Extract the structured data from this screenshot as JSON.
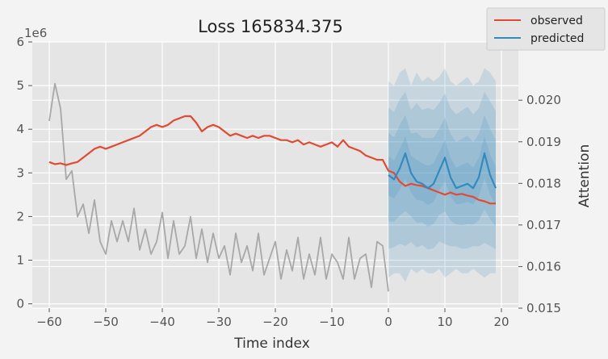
{
  "chart_data": {
    "type": "line",
    "title": "Loss 165834.375",
    "xlabel": "Time index",
    "ylabel_left": "",
    "ylabel_right": "Attention",
    "left_axis_offset_label": "1e6",
    "xlim": [
      -63,
      23
    ],
    "ylim_left": [
      -0.1,
      6.0
    ],
    "ylim_right": [
      0.015,
      0.0214
    ],
    "x_ticks": [
      -60,
      -50,
      -40,
      -30,
      -20,
      -10,
      0,
      10,
      20
    ],
    "y_ticks_left": [
      0,
      1,
      2,
      3,
      4,
      5,
      6
    ],
    "y_ticks_right": [
      0.015,
      0.016,
      0.017,
      0.018,
      0.019,
      0.02
    ],
    "y_tick_labels_right": [
      "0.015",
      "0.016",
      "0.017",
      "0.018",
      "0.019",
      "0.020"
    ],
    "grid": true,
    "legend_position": "top-right",
    "colors": {
      "observed": "#e24a33",
      "predicted": "#348abd",
      "attention": "#a8a8a8",
      "band": "#348abd"
    },
    "series": [
      {
        "name": "observed",
        "axis": "left",
        "x": [
          -60,
          -59,
          -58,
          -57,
          -56,
          -55,
          -54,
          -53,
          -52,
          -51,
          -50,
          -49,
          -48,
          -47,
          -46,
          -45,
          -44,
          -43,
          -42,
          -41,
          -40,
          -39,
          -38,
          -37,
          -36,
          -35,
          -34,
          -33,
          -32,
          -31,
          -30,
          -29,
          -28,
          -27,
          -26,
          -25,
          -24,
          -23,
          -22,
          -21,
          -20,
          -19,
          -18,
          -17,
          -16,
          -15,
          -14,
          -13,
          -12,
          -11,
          -10,
          -9,
          -8,
          -7,
          -6,
          -5,
          -4,
          -3,
          -2,
          -1,
          0,
          1,
          2,
          3,
          4,
          5,
          6,
          7,
          8,
          9,
          10,
          11,
          12,
          13,
          14,
          15,
          16,
          17,
          18,
          19
        ],
        "y": [
          3.25,
          3.2,
          3.22,
          3.18,
          3.22,
          3.25,
          3.35,
          3.45,
          3.55,
          3.6,
          3.55,
          3.6,
          3.65,
          3.7,
          3.75,
          3.8,
          3.85,
          3.95,
          4.05,
          4.1,
          4.05,
          4.1,
          4.2,
          4.25,
          4.3,
          4.3,
          4.15,
          3.95,
          4.05,
          4.1,
          4.05,
          3.95,
          3.85,
          3.9,
          3.85,
          3.8,
          3.85,
          3.8,
          3.85,
          3.85,
          3.8,
          3.75,
          3.75,
          3.7,
          3.75,
          3.65,
          3.7,
          3.65,
          3.6,
          3.65,
          3.7,
          3.6,
          3.75,
          3.6,
          3.55,
          3.5,
          3.4,
          3.35,
          3.3,
          3.3,
          3.05,
          3.0,
          2.8,
          2.7,
          2.75,
          2.72,
          2.7,
          2.65,
          2.6,
          2.55,
          2.5,
          2.55,
          2.5,
          2.52,
          2.48,
          2.45,
          2.38,
          2.35,
          2.3,
          2.3
        ]
      },
      {
        "name": "predicted",
        "axis": "left",
        "x": [
          0,
          1,
          2,
          3,
          4,
          5,
          6,
          7,
          8,
          9,
          10,
          11,
          12,
          13,
          14,
          15,
          16,
          17,
          18,
          19
        ],
        "y": [
          2.95,
          2.85,
          3.1,
          3.45,
          3.0,
          2.8,
          2.75,
          2.65,
          2.75,
          3.05,
          3.35,
          2.9,
          2.65,
          2.7,
          2.75,
          2.65,
          2.9,
          3.45,
          2.95,
          2.65
        ],
        "lower": [
          0.6,
          0.7,
          0.7,
          0.5,
          0.8,
          0.7,
          0.8,
          0.7,
          0.7,
          0.8,
          0.6,
          0.7,
          0.8,
          0.7,
          0.7,
          0.8,
          0.7,
          0.6,
          0.7,
          0.7
        ],
        "upper": [
          5.1,
          5.0,
          5.3,
          5.4,
          5.0,
          5.3,
          5.1,
          5.2,
          5.1,
          5.2,
          5.4,
          5.1,
          5.0,
          5.1,
          5.2,
          5.0,
          5.1,
          5.4,
          5.3,
          5.1
        ]
      },
      {
        "name": "attention",
        "axis": "right",
        "x": [
          -60,
          -59,
          -58,
          -57,
          -56,
          -55,
          -54,
          -53,
          -52,
          -51,
          -50,
          -49,
          -48,
          -47,
          -46,
          -45,
          -44,
          -43,
          -42,
          -41,
          -40,
          -39,
          -38,
          -37,
          -36,
          -35,
          -34,
          -33,
          -32,
          -31,
          -30,
          -29,
          -28,
          -27,
          -26,
          -25,
          -24,
          -23,
          -22,
          -21,
          -20,
          -19,
          -18,
          -17,
          -16,
          -15,
          -14,
          -13,
          -12,
          -11,
          -10,
          -9,
          -8,
          -7,
          -6,
          -5,
          -4,
          -3,
          -2,
          -1,
          0
        ],
        "y": [
          0.0195,
          0.0204,
          0.0198,
          0.0181,
          0.0183,
          0.0172,
          0.0175,
          0.0168,
          0.0176,
          0.0166,
          0.0163,
          0.0171,
          0.0166,
          0.0171,
          0.0166,
          0.0174,
          0.0164,
          0.0169,
          0.0163,
          0.0166,
          0.0173,
          0.0162,
          0.0171,
          0.0163,
          0.0165,
          0.0172,
          0.0162,
          0.0169,
          0.0161,
          0.0168,
          0.0162,
          0.0165,
          0.0158,
          0.0168,
          0.0161,
          0.0165,
          0.0159,
          0.0168,
          0.0158,
          0.0162,
          0.0166,
          0.0157,
          0.0164,
          0.0159,
          0.0167,
          0.0157,
          0.0163,
          0.0158,
          0.0167,
          0.0157,
          0.0163,
          0.0161,
          0.0157,
          0.0167,
          0.0157,
          0.0162,
          0.0163,
          0.0155,
          0.0166,
          0.0165,
          0.0154
        ]
      }
    ]
  }
}
